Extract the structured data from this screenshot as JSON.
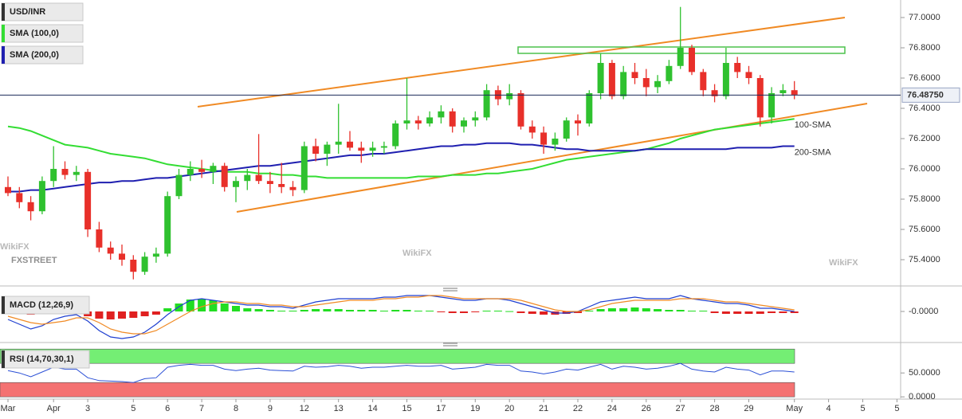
{
  "chart_data": [
    {
      "type": "candlestick",
      "title": "USD/INR",
      "categories": [
        "Mar",
        null,
        null,
        null,
        "Apr",
        null,
        null,
        "3",
        null,
        null,
        null,
        "5",
        null,
        null,
        "6",
        null,
        null,
        "7",
        null,
        null,
        "8",
        null,
        null,
        "9",
        null,
        null,
        "12",
        null,
        null,
        "13",
        null,
        null,
        "14",
        null,
        null,
        "15",
        null,
        null,
        "17",
        null,
        null,
        "19",
        null,
        null,
        "20",
        null,
        null,
        "21",
        null,
        null,
        "22",
        null,
        null,
        "24",
        null,
        null,
        "26",
        null,
        null,
        "27",
        null,
        null,
        "28",
        null,
        null,
        "29",
        null,
        null,
        null,
        "May",
        null,
        null,
        "4",
        null,
        null,
        "5",
        null,
        null,
        "5"
      ],
      "candles": [
        [
          75.88,
          75.95,
          75.82,
          75.84
        ],
        [
          75.84,
          75.88,
          75.74,
          75.78
        ],
        [
          75.78,
          75.82,
          75.66,
          75.72
        ],
        [
          75.72,
          75.95,
          75.7,
          75.92
        ],
        [
          75.92,
          76.15,
          75.88,
          76.0
        ],
        [
          76.0,
          76.05,
          75.93,
          75.96
        ],
        [
          75.96,
          76.02,
          75.92,
          75.98
        ],
        [
          75.98,
          76.0,
          75.55,
          75.6
        ],
        [
          75.6,
          75.65,
          75.45,
          75.48
        ],
        [
          75.48,
          75.52,
          75.4,
          75.44
        ],
        [
          75.44,
          75.5,
          75.36,
          75.4
        ],
        [
          75.4,
          75.43,
          75.27,
          75.32
        ],
        [
          75.32,
          75.45,
          75.3,
          75.42
        ],
        [
          75.42,
          75.48,
          75.38,
          75.44
        ],
        [
          75.44,
          75.85,
          75.42,
          75.82
        ],
        [
          75.82,
          76.0,
          75.8,
          75.96
        ],
        [
          75.96,
          76.05,
          75.92,
          76.0
        ],
        [
          76.0,
          76.06,
          75.94,
          75.98
        ],
        [
          75.98,
          76.04,
          75.9,
          76.02
        ],
        [
          76.02,
          76.04,
          75.85,
          75.88
        ],
        [
          75.88,
          75.95,
          75.78,
          75.92
        ],
        [
          75.92,
          76.0,
          75.86,
          75.96
        ],
        [
          75.96,
          76.23,
          75.9,
          75.92
        ],
        [
          75.92,
          75.98,
          75.84,
          75.9
        ],
        [
          75.9,
          76.04,
          75.84,
          75.88
        ],
        [
          75.88,
          75.92,
          75.82,
          75.86
        ],
        [
          75.86,
          76.18,
          75.84,
          76.15
        ],
        [
          76.15,
          76.2,
          76.05,
          76.1
        ],
        [
          76.1,
          76.18,
          76.02,
          76.16
        ],
        [
          76.16,
          76.43,
          76.1,
          76.18
        ],
        [
          76.18,
          76.25,
          76.12,
          76.14
        ],
        [
          76.14,
          76.18,
          76.04,
          76.12
        ],
        [
          76.12,
          76.18,
          76.08,
          76.14
        ],
        [
          76.14,
          76.18,
          76.1,
          76.15
        ],
        [
          76.15,
          76.32,
          76.13,
          76.3
        ],
        [
          76.3,
          76.6,
          76.26,
          76.32
        ],
        [
          76.32,
          76.35,
          76.26,
          76.3
        ],
        [
          76.3,
          76.38,
          76.28,
          76.34
        ],
        [
          76.34,
          76.42,
          76.3,
          76.38
        ],
        [
          76.38,
          76.4,
          76.24,
          76.28
        ],
        [
          76.28,
          76.34,
          76.24,
          76.32
        ],
        [
          76.32,
          76.38,
          76.28,
          76.34
        ],
        [
          76.34,
          76.56,
          76.32,
          76.52
        ],
        [
          76.52,
          76.55,
          76.42,
          76.46
        ],
        [
          76.46,
          76.56,
          76.42,
          76.5
        ],
        [
          76.5,
          76.52,
          76.26,
          76.28
        ],
        [
          76.28,
          76.32,
          76.2,
          76.24
        ],
        [
          76.24,
          76.28,
          76.1,
          76.16
        ],
        [
          76.16,
          76.24,
          76.12,
          76.2
        ],
        [
          76.2,
          76.34,
          76.18,
          76.32
        ],
        [
          76.32,
          76.36,
          76.22,
          76.3
        ],
        [
          76.3,
          76.52,
          76.28,
          76.5
        ],
        [
          76.5,
          76.76,
          76.46,
          76.7
        ],
        [
          76.7,
          76.72,
          76.46,
          76.48
        ],
        [
          76.48,
          76.68,
          76.46,
          76.64
        ],
        [
          76.64,
          76.7,
          76.56,
          76.6
        ],
        [
          76.6,
          76.66,
          76.48,
          76.54
        ],
        [
          76.54,
          76.62,
          76.5,
          76.58
        ],
        [
          76.58,
          76.72,
          76.56,
          76.68
        ],
        [
          76.68,
          77.07,
          76.66,
          76.8
        ],
        [
          76.8,
          76.82,
          76.62,
          76.64
        ],
        [
          76.64,
          76.66,
          76.48,
          76.52
        ],
        [
          76.52,
          76.56,
          76.44,
          76.48
        ],
        [
          76.48,
          76.8,
          76.46,
          76.7
        ],
        [
          76.7,
          76.74,
          76.6,
          76.64
        ],
        [
          76.64,
          76.68,
          76.56,
          76.6
        ],
        [
          76.6,
          76.62,
          76.28,
          76.34
        ],
        [
          76.34,
          76.54,
          76.3,
          76.5
        ],
        [
          76.5,
          76.56,
          76.48,
          76.52
        ],
        [
          76.52,
          76.58,
          76.46,
          76.49
        ],
        null,
        null,
        null,
        null,
        null,
        null,
        null,
        null,
        null
      ],
      "up_color": "#2fc12f",
      "down_color": "#e8302a",
      "series": [
        {
          "name": "SMA (100,0)",
          "label": "100-SMA",
          "color": "#33dd33",
          "values": [
            76.28,
            76.27,
            76.25,
            76.22,
            76.19,
            76.16,
            76.15,
            76.14,
            76.12,
            76.1,
            76.09,
            76.08,
            76.07,
            76.05,
            76.03,
            76.02,
            76.01,
            76.0,
            75.99,
            75.98,
            75.98,
            75.98,
            75.97,
            75.97,
            75.96,
            75.96,
            75.95,
            75.95,
            75.94,
            75.94,
            75.94,
            75.94,
            75.94,
            75.94,
            75.94,
            75.94,
            75.95,
            75.95,
            75.95,
            75.96,
            75.96,
            75.96,
            75.97,
            75.97,
            75.98,
            75.99,
            76.0,
            76.02,
            76.04,
            76.06,
            76.07,
            76.08,
            76.09,
            76.1,
            76.11,
            76.12,
            76.13,
            76.15,
            76.17,
            76.2,
            76.22,
            76.24,
            76.26,
            76.27,
            76.28,
            76.29,
            76.3,
            76.31,
            76.32,
            76.33,
            null,
            null,
            null,
            null,
            null,
            null,
            null,
            null,
            null
          ]
        },
        {
          "name": "SMA (200,0)",
          "label": "200-SMA",
          "color": "#1f1fb0",
          "values": [
            75.85,
            75.85,
            75.86,
            75.86,
            75.87,
            75.88,
            75.89,
            75.9,
            75.91,
            75.91,
            75.92,
            75.92,
            75.93,
            75.94,
            75.94,
            75.95,
            75.96,
            75.97,
            75.98,
            75.99,
            76.0,
            76.01,
            76.02,
            76.02,
            76.03,
            76.04,
            76.05,
            76.06,
            76.07,
            76.08,
            76.09,
            76.09,
            76.1,
            76.1,
            76.11,
            76.12,
            76.13,
            76.14,
            76.15,
            76.15,
            76.16,
            76.16,
            76.17,
            76.17,
            76.17,
            76.16,
            76.16,
            76.15,
            76.14,
            76.13,
            76.13,
            76.12,
            76.12,
            76.12,
            76.12,
            76.12,
            76.13,
            76.13,
            76.13,
            76.13,
            76.13,
            76.13,
            76.13,
            76.13,
            76.14,
            76.14,
            76.14,
            76.14,
            76.15,
            76.15,
            null,
            null,
            null,
            null,
            null,
            null,
            null,
            null,
            null
          ]
        }
      ],
      "current_price": {
        "value": 76.4875,
        "label": "76.48750"
      },
      "ylim": [
        75.2316,
        77.1158
      ],
      "yticks": [
        {
          "value": 77,
          "label": "77.0000"
        },
        {
          "value": 76.8,
          "label": "76.8000"
        },
        {
          "value": 76.6,
          "label": "76.6000"
        },
        {
          "value": 76.4,
          "label": "76.4000"
        },
        {
          "value": 76.2,
          "label": "76.2000"
        },
        {
          "value": 76,
          "label": "76.0000"
        },
        {
          "value": 75.8,
          "label": "75.8000"
        },
        {
          "value": 75.6,
          "label": "75.6000"
        },
        {
          "value": 75.4,
          "label": "75.4000"
        }
      ],
      "watermarks": [
        "FXSTREET",
        "WikiFX"
      ]
    },
    {
      "type": "macd",
      "title": "MACD (12,26,9)",
      "histogram": {
        "up_color": "#22dd22",
        "down_color": "#e02020",
        "values": [
          -0.01,
          -0.015,
          -0.02,
          -0.01,
          -0.005,
          -0.005,
          -0.01,
          -0.03,
          -0.045,
          -0.05,
          -0.045,
          -0.04,
          -0.03,
          -0.02,
          0.02,
          0.05,
          0.075,
          0.08,
          0.07,
          0.05,
          0.035,
          0.02,
          0.015,
          0.01,
          0.005,
          0.005,
          0.01,
          0.015,
          0.015,
          0.015,
          0.01,
          0.01,
          0.01,
          0.005,
          0.01,
          0.01,
          0.005,
          0.005,
          -0.005,
          -0.01,
          -0.01,
          -0.005,
          0.005,
          0.005,
          0.002,
          -0.01,
          -0.015,
          -0.02,
          -0.02,
          -0.015,
          -0.01,
          0.005,
          0.015,
          0.02,
          0.02,
          0.025,
          0.02,
          0.015,
          0.01,
          0.01,
          0.005,
          0.005,
          -0.01,
          -0.015,
          -0.015,
          -0.015,
          -0.015,
          -0.01,
          -0.01,
          -0.01,
          null,
          null,
          null,
          null,
          null,
          null,
          null,
          null,
          null
        ]
      },
      "series": [
        {
          "color": "#1f3fd0",
          "values": [
            -0.05,
            -0.08,
            -0.11,
            -0.09,
            -0.05,
            -0.03,
            -0.02,
            -0.06,
            -0.12,
            -0.16,
            -0.17,
            -0.16,
            -0.13,
            -0.08,
            -0.02,
            0.03,
            0.07,
            0.08,
            0.07,
            0.06,
            0.05,
            0.04,
            0.04,
            0.03,
            0.03,
            0.02,
            0.04,
            0.06,
            0.07,
            0.08,
            0.08,
            0.08,
            0.08,
            0.09,
            0.09,
            0.1,
            0.1,
            0.1,
            0.09,
            0.08,
            0.07,
            0.07,
            0.08,
            0.08,
            0.07,
            0.05,
            0.03,
            0.01,
            -0.01,
            -0.01,
            0.0,
            0.03,
            0.06,
            0.07,
            0.08,
            0.09,
            0.08,
            0.08,
            0.08,
            0.1,
            0.08,
            0.07,
            0.06,
            0.05,
            0.05,
            0.04,
            0.02,
            0.02,
            0.01,
            0.0,
            null,
            null,
            null,
            null,
            null,
            null,
            null,
            null,
            null
          ]
        },
        {
          "color": "#f08a24",
          "values": [
            -0.03,
            -0.05,
            -0.07,
            -0.08,
            -0.07,
            -0.06,
            -0.04,
            -0.04,
            -0.07,
            -0.11,
            -0.13,
            -0.14,
            -0.14,
            -0.12,
            -0.08,
            -0.04,
            0.0,
            0.03,
            0.05,
            0.06,
            0.06,
            0.05,
            0.05,
            0.04,
            0.04,
            0.03,
            0.03,
            0.04,
            0.05,
            0.06,
            0.07,
            0.07,
            0.07,
            0.08,
            0.08,
            0.09,
            0.09,
            0.1,
            0.1,
            0.09,
            0.08,
            0.08,
            0.08,
            0.08,
            0.08,
            0.07,
            0.05,
            0.03,
            0.01,
            0.0,
            0.0,
            0.01,
            0.03,
            0.05,
            0.06,
            0.07,
            0.07,
            0.07,
            0.07,
            0.08,
            0.08,
            0.08,
            0.07,
            0.06,
            0.06,
            0.05,
            0.04,
            0.03,
            0.02,
            0.01,
            null,
            null,
            null,
            null,
            null,
            null,
            null,
            null,
            null
          ]
        }
      ],
      "ylim": [
        -0.17,
        0.12
      ],
      "yticks": [
        {
          "value": 0,
          "label": "-0.0000"
        }
      ]
    },
    {
      "type": "rsi",
      "title": "RSI (14,70,30,1)",
      "series": [
        {
          "color": "#2a4fd6",
          "values": [
            55,
            50,
            42,
            52,
            62,
            58,
            58,
            40,
            34,
            33,
            32,
            30,
            38,
            40,
            62,
            66,
            68,
            66,
            66,
            58,
            55,
            58,
            60,
            56,
            55,
            54,
            64,
            62,
            63,
            66,
            64,
            60,
            62,
            62,
            64,
            66,
            64,
            64,
            66,
            58,
            60,
            62,
            68,
            66,
            66,
            54,
            52,
            48,
            52,
            58,
            56,
            62,
            68,
            58,
            64,
            62,
            58,
            60,
            64,
            70,
            58,
            54,
            52,
            62,
            58,
            56,
            46,
            54,
            54,
            52,
            null,
            null,
            null,
            null,
            null,
            null,
            null,
            null,
            null
          ]
        }
      ],
      "bands": [
        {
          "from": 70,
          "to": 100,
          "color": "#74ee74"
        },
        {
          "from": 0,
          "to": 30,
          "color": "#f47272"
        }
      ],
      "ylim": [
        -3,
        102
      ],
      "yticks": [
        {
          "value": 50,
          "label": "50.0000"
        },
        {
          "value": 0,
          "label": "0.0000"
        }
      ]
    }
  ]
}
